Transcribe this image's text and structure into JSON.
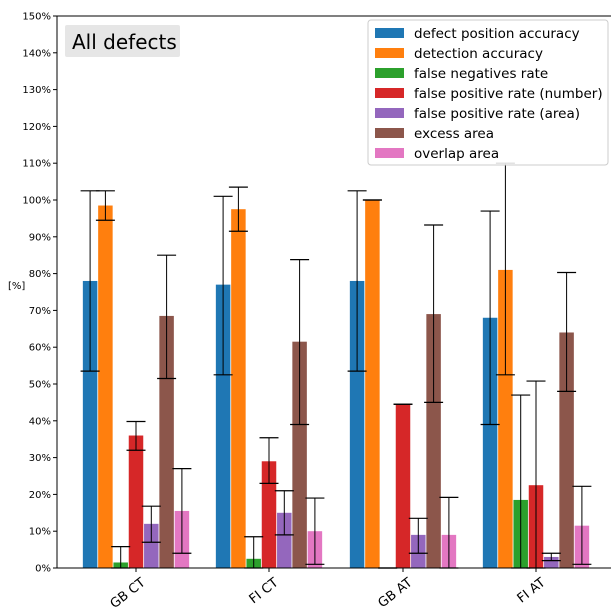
{
  "chart_data": {
    "type": "bar",
    "title": "All defects",
    "ylabel": "[%]",
    "ylim": [
      0,
      150
    ],
    "yticks": [
      "0%",
      "10%",
      "20%",
      "30%",
      "40%",
      "50%",
      "60%",
      "70%",
      "80%",
      "90%",
      "100%",
      "110%",
      "120%",
      "130%",
      "140%",
      "150%"
    ],
    "categories": [
      "GB CT",
      "FI CT",
      "GB AT",
      "FI AT"
    ],
    "legend_position": "top-right",
    "series": [
      {
        "name": "defect position accuracy",
        "color": "#1f77b4",
        "values": [
          78,
          77,
          78,
          68
        ],
        "err_low": [
          53.5,
          52.5,
          53.5,
          39
        ],
        "err_high": [
          102.5,
          101,
          102.5,
          97
        ]
      },
      {
        "name": "detection accuracy",
        "color": "#ff7f0e",
        "values": [
          98.5,
          97.5,
          100,
          81
        ],
        "err_low": [
          94.5,
          91.5,
          100,
          52.5
        ],
        "err_high": [
          102.5,
          103.5,
          100,
          110
        ]
      },
      {
        "name": "false negatives rate",
        "color": "#2ca02c",
        "values": [
          1.5,
          2.5,
          0,
          18.5
        ],
        "err_low": [
          0,
          0,
          0,
          0
        ],
        "err_high": [
          5.8,
          8.5,
          0,
          47
        ]
      },
      {
        "name": "false positive rate (number)",
        "color": "#d62728",
        "values": [
          36,
          29,
          44.5,
          22.5
        ],
        "err_low": [
          32,
          23,
          44.5,
          0
        ],
        "err_high": [
          39.8,
          35.4,
          44.5,
          50.8
        ]
      },
      {
        "name": "false positive rate (area)",
        "color": "#9467bd",
        "values": [
          12,
          15,
          9,
          3
        ],
        "err_low": [
          7,
          9,
          4,
          2
        ],
        "err_high": [
          16.8,
          21,
          13.5,
          4
        ]
      },
      {
        "name": "excess area",
        "color": "#8c564b",
        "values": [
          68.5,
          61.5,
          69,
          64
        ],
        "err_low": [
          51.5,
          39,
          45,
          48
        ],
        "err_high": [
          85,
          83.8,
          93.2,
          80.3
        ]
      },
      {
        "name": "overlap area",
        "color": "#e377c2",
        "values": [
          15.5,
          10,
          9,
          11.5
        ],
        "err_low": [
          4,
          1,
          0,
          1
        ],
        "err_high": [
          27,
          19,
          19.2,
          22.2
        ]
      }
    ]
  }
}
